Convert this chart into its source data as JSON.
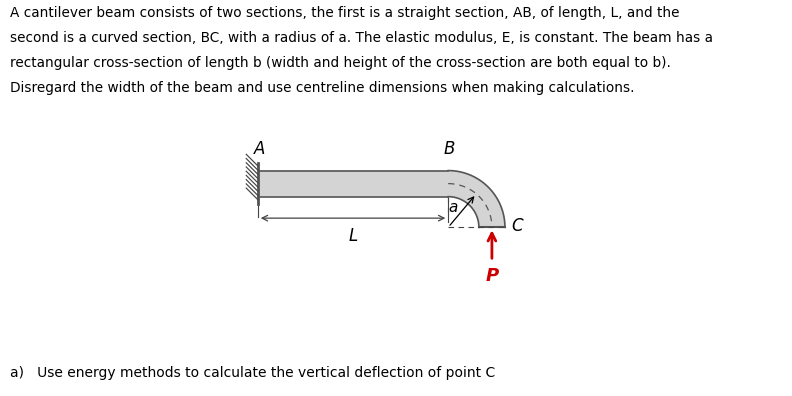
{
  "text_block_lines": [
    "A cantilever beam consists of two sections, the first is a straight section, AB, of length, L, and the",
    "second is a curved section, BC, with a radius of a. The elastic modulus, E, is constant. The beam has a",
    "rectangular cross-section of length b (width and height of the cross-section are both equal to b).",
    "Disregard the width of the beam and use centreline dimensions when making calculations."
  ],
  "question": "a)   Use energy methods to calculate the vertical deflection of point C",
  "bg_color": "#ffffff",
  "beam_fill_color": "#d4d4d4",
  "beam_edge_color": "#555555",
  "hatch_color": "#444444",
  "arrow_color": "#cc0000",
  "dim_line_color": "#444444",
  "label_A": "A",
  "label_B": "B",
  "label_C": "C",
  "label_a": "a",
  "label_L": "L",
  "label_P": "P",
  "beam_x_start": 1.0,
  "beam_x_end": 7.2,
  "beam_top_y": 4.2,
  "beam_bot_y": 3.35,
  "inner_r": 1.0,
  "xlim": [
    0,
    11
  ],
  "ylim": [
    -2.5,
    5.5
  ]
}
